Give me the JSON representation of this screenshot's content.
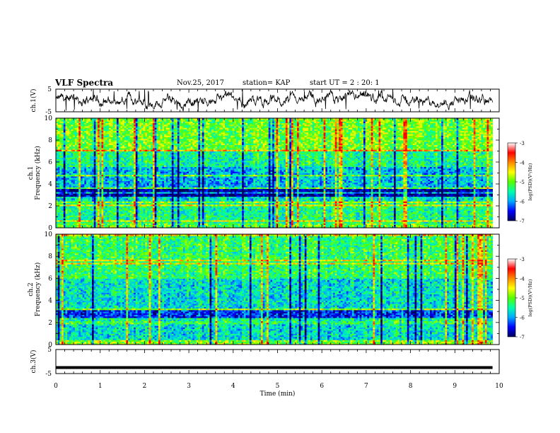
{
  "header": {
    "title": "VLF Spectra",
    "date": "Nov.25, 2017",
    "station": "station= KAP",
    "start_ut": "start  UT =   2 : 20: 1"
  },
  "chart_data": [
    {
      "type": "line",
      "name": "ch1-waveform",
      "ylabel": "ch.1(V)",
      "ylim": [
        -5,
        5
      ],
      "yticks": [
        "5",
        "-5"
      ],
      "xlim": [
        0,
        10
      ],
      "color": "#000000"
    },
    {
      "type": "heatmap",
      "name": "ch1-spectrogram",
      "ylabel_line1": "ch.1",
      "ylabel_line2": "Frequency  (kHz)",
      "xlim": [
        0,
        9.85
      ],
      "ylim": [
        0,
        10
      ],
      "yticks": [
        "0",
        "2",
        "4",
        "6",
        "8",
        "10"
      ],
      "colorbar": {
        "label": "log(PSD)(V²/Hz)",
        "range": [
          -7,
          -3
        ],
        "ticks": [
          "-3",
          "-4",
          "-5",
          "-6",
          "-7"
        ]
      }
    },
    {
      "type": "heatmap",
      "name": "ch2-spectrogram",
      "ylabel_line1": "ch.2",
      "ylabel_line2": "Frequency  (kHz)",
      "xlim": [
        0,
        9.85
      ],
      "ylim": [
        0,
        10
      ],
      "yticks": [
        "0",
        "2",
        "4",
        "6",
        "8",
        "10"
      ],
      "colorbar": {
        "label": "log(PSD)(V²/Hz)",
        "range": [
          -7,
          -3
        ],
        "ticks": [
          "-3",
          "-4",
          "-5",
          "-6",
          "-7"
        ]
      }
    },
    {
      "type": "line",
      "name": "ch3-waveform",
      "ylabel": "ch.3(V)",
      "ylim": [
        -5,
        5
      ],
      "yticks": [
        "5",
        "-5"
      ],
      "xlim": [
        0,
        10
      ],
      "y": [
        -2.5,
        -2.5
      ],
      "color": "#000000"
    }
  ],
  "xaxis": {
    "label": "Time  (min)",
    "ticks": [
      "0",
      "1",
      "2",
      "3",
      "4",
      "5",
      "6",
      "7",
      "8",
      "9",
      "10"
    ]
  },
  "colors": {
    "colormap": [
      "#00005a",
      "#0000ff",
      "#00aaff",
      "#00ffaa",
      "#55ff00",
      "#ffff00",
      "#ff8800",
      "#ff0000",
      "#ffffff"
    ]
  }
}
